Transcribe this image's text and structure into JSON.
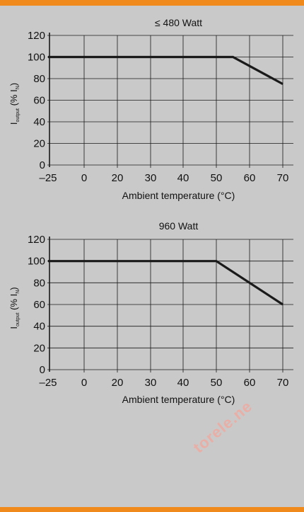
{
  "colors": {
    "background": "#c9c9c9",
    "accent": "#f08a1c",
    "line": "#1a1a1a",
    "grid": "#1a1a1a",
    "watermark": "#f4a69a"
  },
  "watermark": {
    "text": "torele.ne"
  },
  "chart_data": [
    {
      "type": "line",
      "title": "≤ 480 Watt",
      "xlabel": "Ambient temperature (°C)",
      "ylabel": {
        "prefix": "I",
        "sub1": "output",
        "mid": " (% I",
        "sub2": "N",
        "suffix": ")"
      },
      "x_ticks": [
        "–25",
        "0",
        "20",
        "30",
        "40",
        "50",
        "60",
        "70"
      ],
      "y_ticks": [
        "0",
        "20",
        "40",
        "60",
        "80",
        "100",
        "120"
      ],
      "ylim": [
        0,
        120
      ],
      "grid": true,
      "series": [
        {
          "x": [
            -25,
            55,
            70
          ],
          "y": [
            100,
            100,
            75
          ]
        }
      ]
    },
    {
      "type": "line",
      "title": "960 Watt",
      "xlabel": "Ambient temperature (°C)",
      "ylabel": {
        "prefix": "I",
        "sub1": "output",
        "mid": " (% I",
        "sub2": "N",
        "suffix": ")"
      },
      "x_ticks": [
        "–25",
        "0",
        "20",
        "30",
        "40",
        "50",
        "60",
        "70"
      ],
      "y_ticks": [
        "0",
        "20",
        "40",
        "60",
        "80",
        "100",
        "120"
      ],
      "ylim": [
        0,
        120
      ],
      "grid": true,
      "series": [
        {
          "x": [
            -25,
            50,
            70
          ],
          "y": [
            100,
            100,
            60
          ]
        }
      ]
    }
  ]
}
